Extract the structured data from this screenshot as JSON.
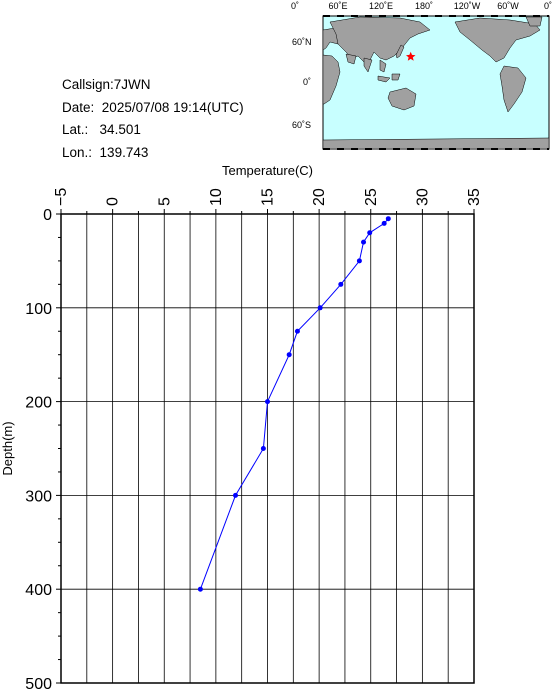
{
  "station": {
    "callsign_label": "Callsign:",
    "callsign": "7JWN",
    "date_label": "Date:",
    "date": "2025/07/08 19:14(UTC)",
    "lat_label": "Lat.:",
    "lat": "34.501",
    "lon_label": "Lon.:",
    "lon": "139.743"
  },
  "map": {
    "top_labels": [
      "0˚",
      "60˚E",
      "120˚E",
      "180˚",
      "120˚W",
      "60˚W",
      "0˚"
    ],
    "lat_labels": [
      "60˚N",
      "0˚",
      "60˚S"
    ],
    "ocean_color": "#c8ffff",
    "land_color": "#a0a0a0",
    "marker_color": "#ff0000",
    "marker": {
      "lon": 139.743,
      "lat": 34.501
    }
  },
  "chart_data": {
    "type": "line",
    "xlabel": "Temperature(C)",
    "ylabel": "Depth(m)",
    "xlim": [
      -5,
      35
    ],
    "ylim": [
      0,
      500
    ],
    "y_inverted": true,
    "x_ticks": [
      -5,
      0,
      5,
      10,
      15,
      20,
      25,
      30,
      35
    ],
    "y_ticks": [
      0,
      100,
      200,
      300,
      400,
      500
    ],
    "grid": true,
    "line_color": "#0000ff",
    "series": [
      {
        "x": [
          26.7,
          26.3,
          24.9,
          24.3,
          23.9,
          22.1,
          20.1,
          17.9,
          17.1,
          15.0,
          14.6,
          11.9,
          8.5
        ],
        "y": [
          5,
          10,
          20,
          30,
          50,
          75,
          100,
          125,
          150,
          200,
          250,
          300,
          400
        ]
      }
    ]
  }
}
